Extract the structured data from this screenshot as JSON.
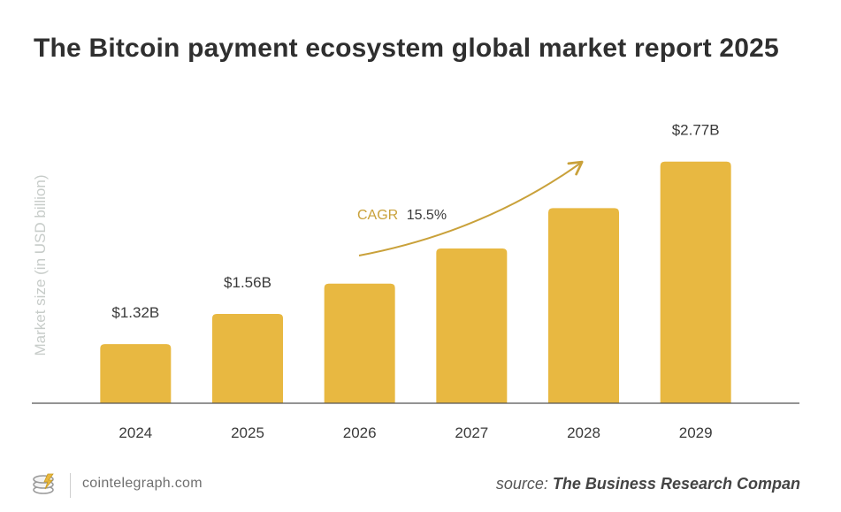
{
  "title": "The Bitcoin payment ecosystem global market report 2025",
  "chart_data": {
    "type": "bar",
    "title": "The Bitcoin payment ecosystem global market report 2025",
    "ylabel": "Market size (in USD billion)",
    "xlabel": "",
    "categories": [
      "2024",
      "2025",
      "2026",
      "2027",
      "2028",
      "2029"
    ],
    "values": [
      1.32,
      1.56,
      1.8,
      2.08,
      2.4,
      2.77
    ],
    "data_labels": [
      "$1.32B",
      "$1.56B",
      "",
      "",
      "",
      "$2.77B"
    ],
    "ylim": [
      0.85,
      3.0
    ],
    "grid": false,
    "bar_color": "#e8b841",
    "annotation": {
      "label": "CAGR",
      "value": "15.5%"
    }
  },
  "colors": {
    "bar": "#e8b841",
    "annotation": "#c9a13a",
    "axis": "#555555",
    "ylabel": "#c7ccc9"
  },
  "footer": {
    "brand": "cointelegraph.com",
    "logo_icon": "cointelegraph-logo-icon",
    "source_prefix": "source:",
    "source_name": "The Business Research Compan"
  }
}
